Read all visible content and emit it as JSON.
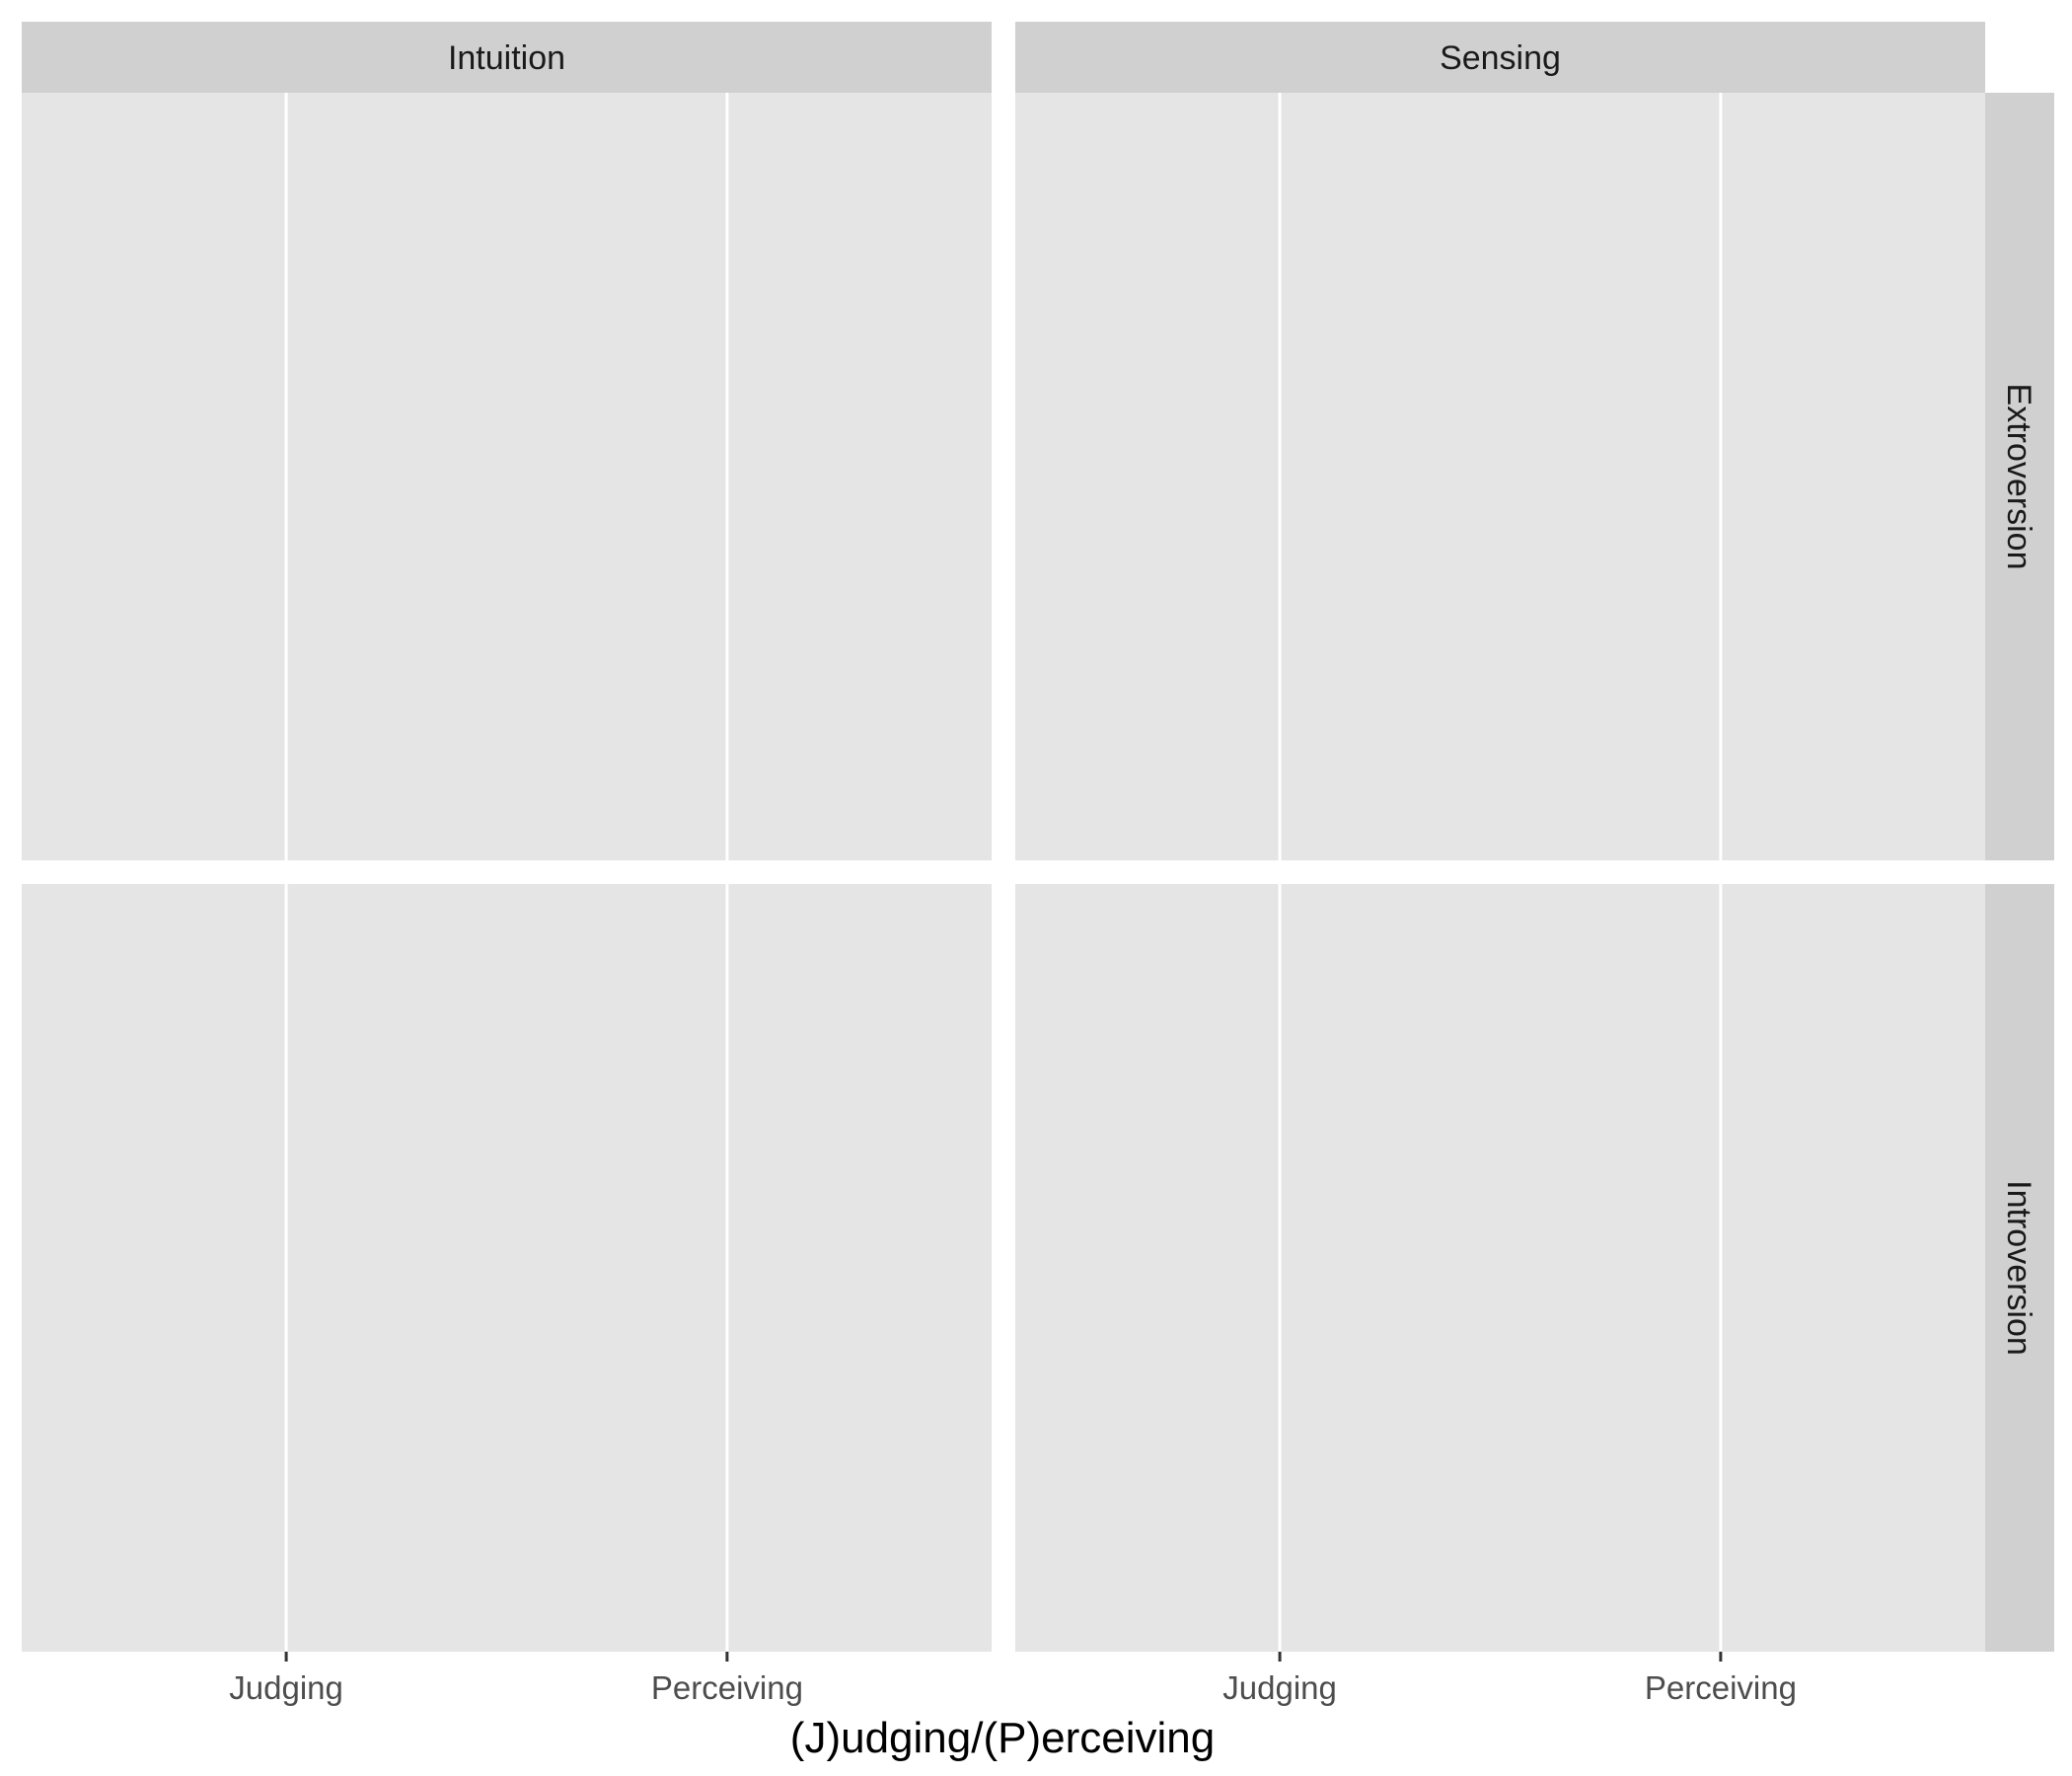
{
  "chart_data": {
    "type": "bar",
    "title": "",
    "xlabel": "(J)udging/(P)erceiving",
    "ylabel": "",
    "categories": [
      "Judging",
      "Perceiving"
    ],
    "facet_columns": [
      "Intuition",
      "Sensing"
    ],
    "facet_rows": [
      "Extroversion",
      "Introversion"
    ],
    "panels": [
      {
        "column": "Intuition",
        "row": "Extroversion",
        "values": []
      },
      {
        "column": "Sensing",
        "row": "Extroversion",
        "values": []
      },
      {
        "column": "Intuition",
        "row": "Introversion",
        "values": []
      },
      {
        "column": "Sensing",
        "row": "Introversion",
        "values": []
      }
    ],
    "grid": true,
    "legend": "none"
  },
  "colors": {
    "panel_background": "#e5e5e5",
    "strip_background": "#d0d0d0",
    "grid_line": "#ffffff",
    "tick_mark": "#333333"
  }
}
